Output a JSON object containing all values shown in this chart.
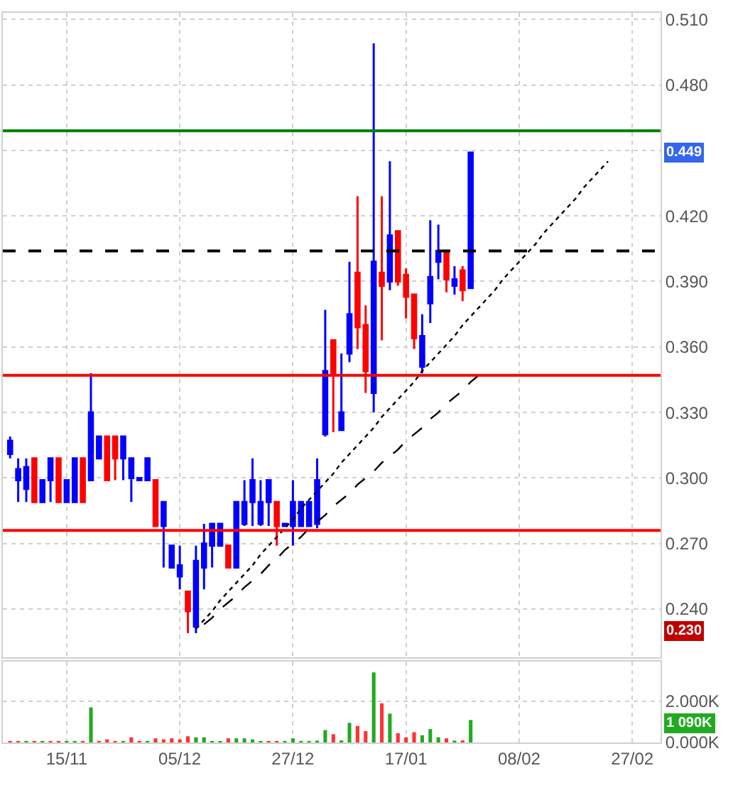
{
  "chart_data": [
    {
      "type": "candlestick",
      "categories": [
        null,
        null,
        null,
        null,
        null,
        null,
        null,
        null,
        null,
        null,
        null,
        null,
        null,
        null,
        null,
        null,
        null,
        null,
        null,
        null,
        null,
        null,
        null,
        null,
        null,
        null,
        null,
        null,
        null,
        null,
        null,
        null,
        null,
        null,
        null,
        null,
        null,
        null,
        null,
        null,
        null,
        null,
        null,
        null,
        null,
        null,
        null,
        null,
        null,
        null,
        null,
        null,
        null,
        null,
        null,
        null,
        null,
        null,
        null,
        null,
        null,
        null,
        null,
        null,
        null,
        null,
        null,
        null,
        null,
        null,
        null,
        null,
        null,
        null,
        null,
        null,
        null,
        null,
        null,
        null,
        null
      ],
      "ohlc": [
        [
          0.311,
          0.319,
          0.309,
          0.317
        ],
        [
          0.299,
          0.309,
          0.289,
          0.304
        ],
        [
          0.295,
          0.309,
          0.289,
          0.305
        ],
        [
          0.309,
          0.309,
          0.289,
          0.289
        ],
        [
          0.289,
          0.299,
          0.289,
          0.299
        ],
        [
          0.299,
          0.309,
          0.289,
          0.309
        ],
        [
          0.309,
          0.309,
          0.289,
          0.289
        ],
        [
          0.289,
          0.299,
          0.289,
          0.299
        ],
        [
          0.289,
          0.309,
          0.289,
          0.309
        ],
        [
          0.309,
          0.309,
          0.289,
          0.289
        ],
        [
          0.299,
          0.348,
          0.299,
          0.33
        ],
        [
          0.309,
          0.319,
          0.309,
          0.319
        ],
        [
          0.319,
          0.319,
          0.299,
          0.299
        ],
        [
          0.319,
          0.319,
          0.299,
          0.309
        ],
        [
          0.309,
          0.319,
          0.299,
          0.319
        ],
        [
          0.3,
          0.309,
          0.289,
          0.309
        ],
        [
          0.299,
          0.3,
          0.299,
          0.3
        ],
        [
          0.299,
          0.309,
          0.299,
          0.309
        ],
        [
          0.299,
          0.299,
          0.278,
          0.278
        ],
        [
          0.278,
          0.289,
          0.259,
          0.289
        ],
        [
          0.259,
          0.269,
          0.259,
          0.269
        ],
        [
          0.255,
          0.269,
          0.249,
          0.26
        ],
        [
          0.248,
          0.248,
          0.229,
          0.239
        ],
        [
          0.232,
          0.269,
          0.229,
          0.262
        ],
        [
          0.259,
          0.279,
          0.249,
          0.27
        ],
        [
          0.269,
          0.279,
          0.259,
          0.279
        ],
        [
          0.269,
          0.279,
          0.269,
          0.279
        ],
        [
          0.269,
          0.269,
          0.259,
          0.259
        ],
        [
          0.259,
          0.289,
          0.259,
          0.289
        ],
        [
          0.279,
          0.299,
          0.278,
          0.289
        ],
        [
          0.289,
          0.309,
          0.278,
          0.299
        ],
        [
          0.279,
          0.299,
          0.278,
          0.289
        ],
        [
          0.289,
          0.299,
          0.278,
          0.299
        ],
        [
          0.289,
          0.289,
          0.269,
          0.278
        ],
        [
          0.278,
          0.279,
          0.278,
          0.279
        ],
        [
          0.278,
          0.299,
          0.269,
          0.289
        ],
        [
          0.278,
          0.289,
          0.278,
          0.289
        ],
        [
          0.278,
          0.289,
          0.278,
          0.289
        ],
        [
          0.279,
          0.309,
          0.277,
          0.299
        ],
        [
          0.32,
          0.377,
          0.319,
          0.349
        ],
        [
          0.363,
          0.363,
          0.321,
          0.348
        ],
        [
          0.322,
          0.357,
          0.322,
          0.33
        ],
        [
          0.357,
          0.399,
          0.353,
          0.375
        ],
        [
          0.394,
          0.429,
          0.359,
          0.369
        ],
        [
          0.37,
          0.379,
          0.339,
          0.349
        ],
        [
          0.339,
          0.499,
          0.33,
          0.399
        ],
        [
          0.394,
          0.429,
          0.363,
          0.388
        ],
        [
          0.39,
          0.445,
          0.386,
          0.411
        ],
        [
          0.413,
          0.413,
          0.388,
          0.39
        ],
        [
          0.393,
          0.396,
          0.373,
          0.383
        ],
        [
          0.384,
          0.384,
          0.359,
          0.364
        ],
        [
          0.351,
          0.375,
          0.348,
          0.365
        ],
        [
          0.38,
          0.418,
          0.371,
          0.392
        ],
        [
          0.399,
          0.416,
          0.391,
          0.404
        ],
        [
          0.404,
          0.404,
          0.385,
          0.391
        ],
        [
          0.388,
          0.397,
          0.384,
          0.391
        ],
        [
          0.395,
          0.397,
          0.381,
          0.386
        ],
        [
          0.387,
          0.449,
          0.387,
          0.449
        ],
        null,
        null,
        null,
        null,
        null,
        null,
        null,
        null,
        null,
        null,
        null,
        null,
        null,
        null,
        null,
        null,
        null,
        null,
        null,
        null,
        null,
        null,
        null
      ],
      "colors": [
        "#0000ff",
        "#0000ff",
        "#0000ff",
        "#ff0000",
        "#0000ff",
        "#0000ff",
        "#ff0000",
        "#0000ff",
        "#0000ff",
        "#ff0000",
        "#0000ff",
        "#0000ff",
        "#ff0000",
        "#ff0000",
        "#0000ff",
        "#0000ff",
        "#0000ff",
        "#0000ff",
        "#ff0000",
        "#0000ff",
        "#0000ff",
        "#0000ff",
        "#ff0000",
        "#0000ff",
        "#0000ff",
        "#0000ff",
        "#0000ff",
        "#ff0000",
        "#0000ff",
        "#0000ff",
        "#0000ff",
        "#0000ff",
        "#0000ff",
        "#ff0000",
        "#0000ff",
        "#0000ff",
        "#0000ff",
        "#0000ff",
        "#0000ff",
        "#0000ff",
        "#ff0000",
        "#0000ff",
        "#0000ff",
        "#ff0000",
        "#ff0000",
        "#0000ff",
        "#ff0000",
        "#0000ff",
        "#ff0000",
        "#ff0000",
        "#ff0000",
        "#0000ff",
        "#0000ff",
        "#0000ff",
        "#ff0000",
        "#0000ff",
        "#ff0000",
        "#0000ff",
        null,
        null,
        null,
        null,
        null,
        null,
        null,
        null,
        null,
        null,
        null,
        null,
        null,
        null,
        null,
        null,
        null,
        null,
        null,
        null,
        null,
        null,
        null
      ],
      "series": [
        {
          "type": "line",
          "color": "#000000",
          "line_style": "dotted",
          "values": [
            null,
            null,
            null,
            null,
            null,
            null,
            null,
            null,
            null,
            null,
            null,
            null,
            null,
            null,
            null,
            null,
            null,
            null,
            null,
            null,
            null,
            null,
            null,
            0.231,
            0.235,
            0.239,
            0.244,
            0.248,
            0.252,
            0.256,
            0.26,
            0.265,
            0.269,
            0.273,
            0.277,
            0.281,
            0.286,
            0.29,
            0.294,
            0.298,
            0.302,
            0.307,
            0.311,
            0.315,
            0.319,
            0.323,
            0.328,
            0.332,
            0.336,
            0.34,
            0.344,
            0.349,
            0.353,
            0.357,
            0.361,
            0.365,
            0.37,
            0.374,
            0.378,
            0.382,
            0.386,
            0.391,
            0.395,
            0.399,
            0.403,
            0.407,
            0.412,
            0.416,
            0.42,
            0.424,
            0.428,
            0.433,
            0.437,
            0.441,
            0.445,
            null,
            null,
            null,
            null,
            null,
            null
          ]
        },
        {
          "type": "line",
          "color": "#000000",
          "line_style": "dashed",
          "values": [
            null,
            null,
            null,
            null,
            null,
            null,
            null,
            null,
            null,
            null,
            null,
            null,
            null,
            null,
            null,
            null,
            null,
            null,
            null,
            null,
            null,
            null,
            null,
            null,
            0.233,
            0.236,
            0.24,
            0.243,
            0.246,
            0.25,
            0.253,
            0.256,
            0.26,
            0.263,
            0.267,
            0.27,
            0.273,
            0.277,
            0.28,
            0.283,
            0.287,
            0.29,
            0.293,
            0.297,
            0.3,
            0.303,
            0.307,
            0.31,
            0.313,
            0.317,
            0.32,
            0.323,
            0.327,
            0.33,
            0.334,
            0.337,
            0.34,
            0.344,
            0.347,
            null,
            null,
            null,
            null,
            null,
            null,
            null,
            null,
            null,
            null,
            null,
            null,
            null,
            null,
            null,
            null,
            null,
            null,
            null,
            null,
            null,
            null
          ]
        }
      ],
      "ylim": [
        0.218,
        0.513
      ],
      "yticks": [
        {
          "value": 0.24,
          "label": "0.240"
        },
        {
          "value": 0.27,
          "label": "0.270"
        },
        {
          "value": 0.3,
          "label": "0.300"
        },
        {
          "value": 0.33,
          "label": "0.330"
        },
        {
          "value": 0.36,
          "label": "0.360"
        },
        {
          "value": 0.39,
          "label": "0.390"
        },
        {
          "value": 0.42,
          "label": "0.420"
        },
        {
          "value": 0.45,
          "label": null
        },
        {
          "value": 0.48,
          "label": "0.480"
        },
        {
          "value": 0.51,
          "label": "0.510"
        }
      ],
      "grid": true,
      "tick_labels": "y",
      "ref_lines": [
        {
          "axis": "y",
          "value": 0.459,
          "color": "#008000",
          "line_style": "solid"
        },
        {
          "axis": "y",
          "value": 0.404,
          "color": "#000000",
          "line_style": "dashed"
        },
        {
          "axis": "y",
          "value": 0.347,
          "color": "#ff0000",
          "line_style": "solid"
        },
        {
          "axis": "y",
          "value": 0.276,
          "color": "#ff0000",
          "line_style": "solid"
        }
      ],
      "annotations": [
        {
          "text": "0.449",
          "y": 0.449
        },
        {
          "text": "0.230",
          "y": 0.23
        }
      ]
    },
    {
      "type": "bar",
      "categories": [
        null,
        null,
        null,
        null,
        null,
        null,
        null,
        "15/11",
        null,
        null,
        null,
        null,
        null,
        null,
        null,
        null,
        null,
        null,
        null,
        null,
        null,
        "05/12",
        null,
        null,
        null,
        null,
        null,
        null,
        null,
        null,
        null,
        null,
        null,
        null,
        null,
        "27/12",
        null,
        null,
        null,
        null,
        null,
        null,
        null,
        null,
        null,
        null,
        null,
        null,
        null,
        "17/01",
        null,
        null,
        null,
        null,
        null,
        null,
        null,
        null,
        null,
        null,
        null,
        null,
        null,
        "08/02",
        null,
        null,
        null,
        null,
        null,
        null,
        null,
        null,
        null,
        null,
        null,
        null,
        null,
        "27/02",
        null,
        null,
        null
      ],
      "values": [
        20,
        20,
        20,
        20,
        30,
        20,
        20,
        30,
        50,
        20,
        1700,
        40,
        150,
        40,
        70,
        250,
        30,
        20,
        200,
        150,
        200,
        150,
        300,
        250,
        250,
        40,
        40,
        200,
        200,
        200,
        150,
        70,
        40,
        40,
        70,
        200,
        20,
        70,
        90,
        600,
        400,
        100,
        950,
        800,
        550,
        3400,
        1900,
        1400,
        450,
        250,
        500,
        350,
        650,
        250,
        200,
        90,
        100,
        1090,
        null,
        null,
        null,
        null,
        null,
        null,
        null,
        null,
        null,
        null,
        null,
        null,
        null,
        null,
        null,
        null,
        null,
        null,
        null,
        null,
        null,
        null,
        null
      ],
      "colors": [
        "#ff3333",
        "#ff3333",
        "#22aa22",
        "#ff3333",
        "#22aa22",
        "#ff3333",
        "#ff3333",
        "#22aa22",
        "#22aa22",
        "#ff3333",
        "#22aa22",
        "#ff3333",
        "#ff3333",
        "#ff3333",
        "#22aa22",
        "#ff3333",
        "#ff3333",
        "#22aa22",
        "#ff3333",
        "#ff3333",
        "#ff3333",
        "#ff3333",
        "#ff3333",
        "#22aa22",
        "#22aa22",
        "#22aa22",
        "#22aa22",
        "#ff3333",
        "#22aa22",
        "#22aa22",
        "#22aa22",
        "#22aa22",
        "#ff3333",
        "#ff3333",
        "#22aa22",
        "#22aa22",
        "#22aa22",
        "#22aa22",
        "#22aa22",
        "#22aa22",
        "#ff3333",
        "#22aa22",
        "#22aa22",
        "#ff3333",
        "#ff3333",
        "#22aa22",
        "#ff3333",
        "#22aa22",
        "#ff3333",
        "#ff3333",
        "#ff3333",
        "#22aa22",
        "#22aa22",
        "#22aa22",
        "#ff3333",
        "#22aa22",
        "#ff3333",
        "#22aa22",
        null,
        null,
        null,
        null,
        null,
        null,
        null,
        null,
        null,
        null,
        null,
        null,
        null,
        null,
        null,
        null,
        null,
        null,
        null,
        null,
        null,
        null,
        null
      ],
      "ylim": [
        0,
        3930
      ],
      "yticks": [
        {
          "value": 0,
          "label": "0.000K"
        },
        {
          "value": 2000,
          "label": "2.000K"
        }
      ],
      "grid": true,
      "annotations": [
        "1 090K"
      ]
    }
  ]
}
